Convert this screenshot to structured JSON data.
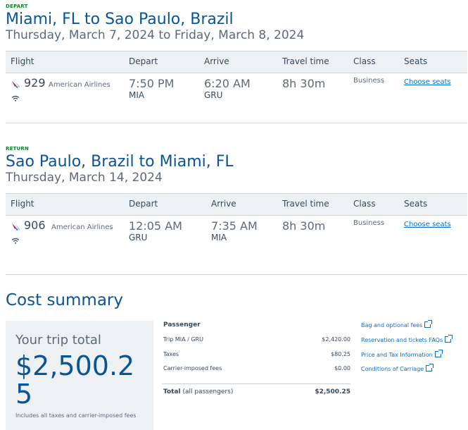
{
  "depart": {
    "tag": "DEPART",
    "route": "Miami, FL to Sao Paulo, Brazil",
    "date": "Thursday, March 7, 2024 to Friday, March 8, 2024",
    "headers": {
      "flight": "Flight",
      "depart": "Depart",
      "arrive": "Arrive",
      "travel": "Travel time",
      "class": "Class",
      "seats": "Seats"
    },
    "flight": {
      "number": "929",
      "airline": "American Airlines",
      "depart_time": "7:50 PM",
      "depart_code": "MIA",
      "arrive_time": "6:20 AM",
      "arrive_code": "GRU",
      "travel_time": "8h 30m",
      "class": "Business",
      "seats_link": "Choose seats",
      "icons": [
        "american-airlines-logo-icon",
        "wifi-icon"
      ]
    }
  },
  "return": {
    "tag": "RETURN",
    "route": "Sao Paulo, Brazil to Miami, FL",
    "date": "Thursday, March 14, 2024",
    "headers": {
      "flight": "Flight",
      "depart": "Depart",
      "arrive": "Arrive",
      "travel": "Travel time",
      "class": "Class",
      "seats": "Seats"
    },
    "flight": {
      "number": "906",
      "airline": "American Airlines",
      "depart_time": "12:05 AM",
      "depart_code": "GRU",
      "arrive_time": "7:35 AM",
      "arrive_code": "MIA",
      "travel_time": "8h 30m",
      "class": "Business",
      "seats_link": "Choose seats",
      "icons": [
        "american-airlines-logo-icon",
        "wifi-icon"
      ]
    }
  },
  "cost": {
    "title": "Cost summary",
    "trip_total_label": "Your trip total",
    "trip_total_amount": "$2,500.25",
    "note": "Includes all taxes and carrier-imposed fees",
    "passenger_heading": "Passenger",
    "lines": [
      {
        "label": "Trip MIA / GRU",
        "value": "$2,420.00"
      },
      {
        "label": "Taxes",
        "value": "$80.25"
      },
      {
        "label": "Carrier-imposed fees",
        "value": "$0.00"
      }
    ],
    "total_label_bold": "Total",
    "total_label_rest": " (all passengers)",
    "total_value": "$2,500.25",
    "links": [
      "Bag and optional fees",
      "Reservation and tickets FAQs",
      "Price and Tax Information",
      "Conditions of Carriage"
    ]
  },
  "colors": {
    "accent": "#0a5496",
    "link": "#0a6fc2",
    "tag_green": "#0b8a2d",
    "table_header_bg": "#eef1f4"
  }
}
